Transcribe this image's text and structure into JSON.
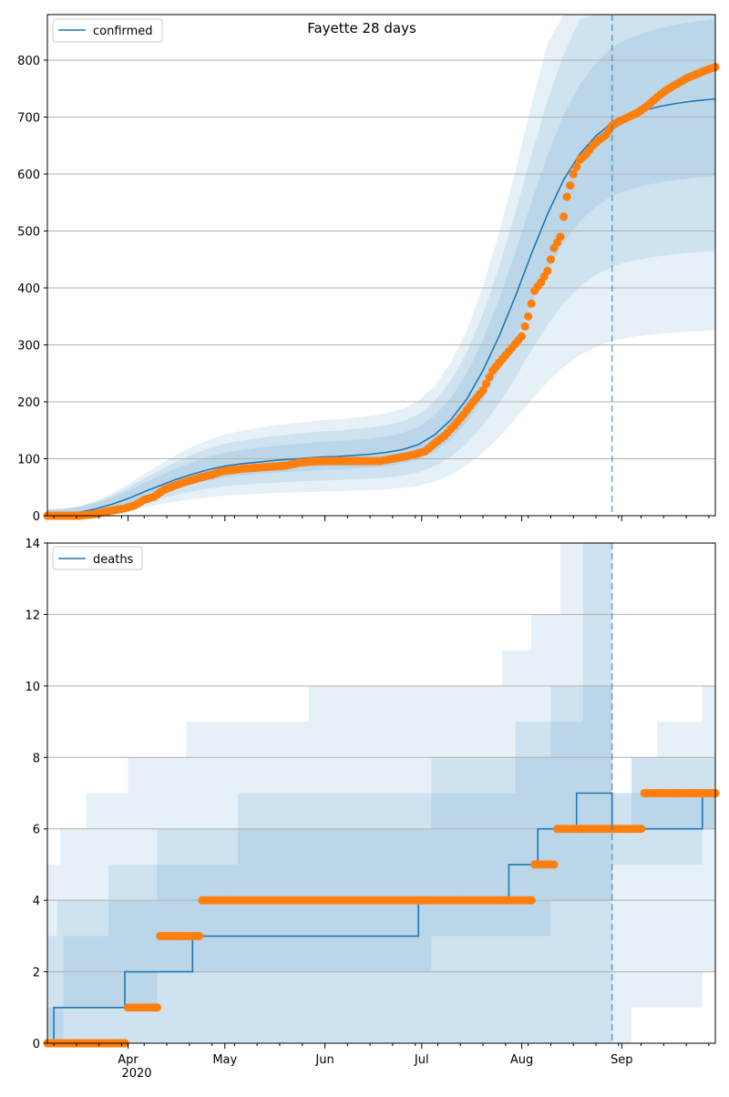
{
  "figure": {
    "title": "Fayette 28 days",
    "colors": {
      "model": "#1f77b4",
      "observed": "#ff7f0e",
      "band": "#1f77b4",
      "grid": "#b0b0b0",
      "forecast_line": "#1f77b4"
    }
  },
  "chart_data": [
    {
      "type": "line",
      "title": "Fayette 28 days",
      "legend": {
        "label": "confirmed",
        "placement": "top-left"
      },
      "xlabel": "",
      "ylabel": "",
      "xlim": [
        "2020-03-07",
        "2020-09-30"
      ],
      "ylim": [
        0,
        880
      ],
      "yticks": [
        0,
        100,
        200,
        300,
        400,
        500,
        600,
        700,
        800
      ],
      "grid": "y",
      "forecast_start": "2020-08-29",
      "model_series": {
        "name": "confirmed",
        "points": [
          [
            "2020-03-07",
            2
          ],
          [
            "2020-03-12",
            3
          ],
          [
            "2020-03-17",
            6
          ],
          [
            "2020-03-22",
            12
          ],
          [
            "2020-03-27",
            20
          ],
          [
            "2020-04-01",
            30
          ],
          [
            "2020-04-06",
            42
          ],
          [
            "2020-04-11",
            53
          ],
          [
            "2020-04-16",
            64
          ],
          [
            "2020-04-21",
            73
          ],
          [
            "2020-04-26",
            81
          ],
          [
            "2020-05-01",
            87
          ],
          [
            "2020-05-06",
            91
          ],
          [
            "2020-05-11",
            94
          ],
          [
            "2020-05-16",
            97
          ],
          [
            "2020-05-21",
            99
          ],
          [
            "2020-05-26",
            101
          ],
          [
            "2020-05-31",
            103
          ],
          [
            "2020-06-05",
            104
          ],
          [
            "2020-06-10",
            106
          ],
          [
            "2020-06-15",
            108
          ],
          [
            "2020-06-20",
            111
          ],
          [
            "2020-06-25",
            116
          ],
          [
            "2020-06-30",
            125
          ],
          [
            "2020-07-05",
            142
          ],
          [
            "2020-07-10",
            168
          ],
          [
            "2020-07-15",
            205
          ],
          [
            "2020-07-20",
            255
          ],
          [
            "2020-07-25",
            315
          ],
          [
            "2020-07-30",
            385
          ],
          [
            "2020-08-04",
            460
          ],
          [
            "2020-08-09",
            530
          ],
          [
            "2020-08-14",
            590
          ],
          [
            "2020-08-19",
            635
          ],
          [
            "2020-08-24",
            667
          ],
          [
            "2020-08-29",
            690
          ],
          [
            "2020-09-03",
            703
          ],
          [
            "2020-09-08",
            712
          ],
          [
            "2020-09-13",
            719
          ],
          [
            "2020-09-18",
            724
          ],
          [
            "2020-09-23",
            728
          ],
          [
            "2020-09-30",
            732
          ]
        ]
      },
      "band_halfwidth_fraction": [
        0.55,
        0.36,
        0.18
      ],
      "observed_series": {
        "name": "",
        "points": [
          [
            "2020-03-07",
            0
          ],
          [
            "2020-03-17",
            0
          ],
          [
            "2020-03-22",
            3
          ],
          [
            "2020-03-25",
            7
          ],
          [
            "2020-03-28",
            10
          ],
          [
            "2020-03-31",
            13
          ],
          [
            "2020-04-03",
            18
          ],
          [
            "2020-04-06",
            28
          ],
          [
            "2020-04-09",
            33
          ],
          [
            "2020-04-12",
            45
          ],
          [
            "2020-04-15",
            52
          ],
          [
            "2020-04-18",
            58
          ],
          [
            "2020-04-21",
            63
          ],
          [
            "2020-04-24",
            68
          ],
          [
            "2020-04-27",
            72
          ],
          [
            "2020-04-30",
            78
          ],
          [
            "2020-05-03",
            80
          ],
          [
            "2020-05-06",
            82
          ],
          [
            "2020-05-10",
            84
          ],
          [
            "2020-05-15",
            86
          ],
          [
            "2020-05-20",
            88
          ],
          [
            "2020-05-24",
            93
          ],
          [
            "2020-05-28",
            95
          ],
          [
            "2020-06-02",
            96
          ],
          [
            "2020-06-08",
            96
          ],
          [
            "2020-06-14",
            96
          ],
          [
            "2020-06-18",
            96
          ],
          [
            "2020-06-22",
            100
          ],
          [
            "2020-06-26",
            104
          ],
          [
            "2020-06-29",
            108
          ],
          [
            "2020-07-02",
            113
          ],
          [
            "2020-07-05",
            127
          ],
          [
            "2020-07-08",
            140
          ],
          [
            "2020-07-11",
            158
          ],
          [
            "2020-07-14",
            178
          ],
          [
            "2020-07-17",
            200
          ],
          [
            "2020-07-20",
            220
          ],
          [
            "2020-07-23",
            255
          ],
          [
            "2020-07-26",
            275
          ],
          [
            "2020-07-29",
            295
          ],
          [
            "2020-08-01",
            315
          ],
          [
            "2020-08-03",
            350
          ],
          [
            "2020-08-05",
            395
          ],
          [
            "2020-08-07",
            410
          ],
          [
            "2020-08-09",
            430
          ],
          [
            "2020-08-11",
            470
          ],
          [
            "2020-08-13",
            490
          ],
          [
            "2020-08-15",
            560
          ],
          [
            "2020-08-17",
            600
          ],
          [
            "2020-08-19",
            625
          ],
          [
            "2020-08-21",
            635
          ],
          [
            "2020-08-23",
            650
          ],
          [
            "2020-08-25",
            660
          ],
          [
            "2020-08-27",
            668
          ],
          [
            "2020-08-29",
            685
          ],
          [
            "2020-08-31",
            692
          ],
          [
            "2020-09-03",
            700
          ],
          [
            "2020-09-06",
            708
          ],
          [
            "2020-09-09",
            720
          ],
          [
            "2020-09-12",
            735
          ],
          [
            "2020-09-15",
            748
          ],
          [
            "2020-09-18",
            758
          ],
          [
            "2020-09-21",
            768
          ],
          [
            "2020-09-24",
            775
          ],
          [
            "2020-09-27",
            782
          ],
          [
            "2020-09-30",
            788
          ]
        ]
      },
      "xticks": [
        "Apr",
        "May",
        "Jun",
        "Jul",
        "Aug",
        "Sep"
      ]
    },
    {
      "type": "line",
      "title": "",
      "legend": {
        "label": "deaths",
        "placement": "top-left"
      },
      "xlabel": "",
      "ylabel": "",
      "xlim": [
        "2020-03-07",
        "2020-09-30"
      ],
      "ylim": [
        0,
        14
      ],
      "yticks": [
        0,
        2,
        4,
        6,
        8,
        10,
        12,
        14
      ],
      "grid": "y",
      "forecast_start": "2020-08-29",
      "model_series": {
        "name": "deaths",
        "steps": [
          [
            "2020-03-07",
            0
          ],
          [
            "2020-03-09",
            1
          ],
          [
            "2020-03-31",
            2
          ],
          [
            "2020-04-21",
            3
          ],
          [
            "2020-06-30",
            4
          ],
          [
            "2020-07-28",
            5
          ],
          [
            "2020-08-06",
            6
          ],
          [
            "2020-08-18",
            7
          ],
          [
            "2020-08-29",
            6
          ],
          [
            "2020-09-26",
            7
          ]
        ]
      },
      "bands": [
        {
          "steps": [
            [
              "2020-03-07",
              0,
              5
            ],
            [
              "2020-03-11",
              0,
              6
            ],
            [
              "2020-03-19",
              0,
              7
            ],
            [
              "2020-04-01",
              0,
              8
            ],
            [
              "2020-04-19",
              0,
              9
            ],
            [
              "2020-05-27",
              0,
              10
            ],
            [
              "2020-07-26",
              0,
              11
            ],
            [
              "2020-08-04",
              0,
              12
            ],
            [
              "2020-08-13",
              0,
              14
            ],
            [
              "2020-08-29",
              0,
              6
            ],
            [
              "2020-09-04",
              1,
              8
            ],
            [
              "2020-09-12",
              1,
              9
            ],
            [
              "2020-09-26",
              2,
              10
            ]
          ]
        },
        {
          "steps": [
            [
              "2020-03-07",
              0,
              3
            ],
            [
              "2020-03-10",
              0,
              4
            ],
            [
              "2020-03-26",
              0,
              5
            ],
            [
              "2020-04-10",
              0,
              6
            ],
            [
              "2020-05-05",
              0,
              7
            ],
            [
              "2020-07-04",
              0,
              8
            ],
            [
              "2020-07-30",
              0,
              9
            ],
            [
              "2020-08-10",
              0,
              10
            ],
            [
              "2020-08-20",
              0,
              14
            ],
            [
              "2020-08-29",
              5,
              7
            ],
            [
              "2020-09-04",
              5,
              8
            ],
            [
              "2020-09-26",
              6,
              8
            ]
          ]
        },
        {
          "steps": [
            [
              "2020-03-07",
              0,
              1
            ],
            [
              "2020-03-12",
              1,
              3
            ],
            [
              "2020-03-26",
              1,
              4
            ],
            [
              "2020-04-10",
              2,
              5
            ],
            [
              "2020-05-05",
              2,
              6
            ],
            [
              "2020-07-04",
              3,
              7
            ],
            [
              "2020-07-30",
              3,
              8
            ],
            [
              "2020-08-10",
              4,
              9
            ],
            [
              "2020-08-20",
              4,
              10
            ],
            [
              "2020-08-29",
              6,
              7
            ],
            [
              "2020-09-26",
              6,
              7
            ]
          ]
        }
      ],
      "observed_series": {
        "name": "",
        "steps": [
          [
            "2020-03-07",
            0
          ],
          [
            "2020-04-01",
            1
          ],
          [
            "2020-04-11",
            3
          ],
          [
            "2020-04-24",
            4
          ],
          [
            "2020-08-05",
            5
          ],
          [
            "2020-08-12",
            6
          ],
          [
            "2020-09-08",
            7
          ],
          [
            "2020-09-30",
            7
          ]
        ]
      },
      "xticks": [
        "Apr",
        "May",
        "Jun",
        "Jul",
        "Aug",
        "Sep"
      ],
      "x_year_label": "2020"
    }
  ]
}
